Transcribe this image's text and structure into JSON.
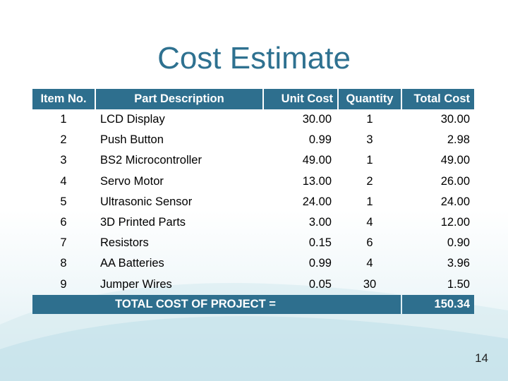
{
  "title": "Cost Estimate",
  "headers": [
    "Item No.",
    "Part Description",
    "Unit Cost",
    "Quantity",
    "Total Cost"
  ],
  "rows": [
    [
      "1",
      "LCD Display",
      "30.00",
      "1",
      "30.00"
    ],
    [
      "2",
      "Push Button",
      "0.99",
      "3",
      "2.98"
    ],
    [
      "3",
      "BS2 Microcontroller",
      "49.00",
      "1",
      "49.00"
    ],
    [
      "4",
      "Servo Motor",
      "13.00",
      "2",
      "26.00"
    ],
    [
      "5",
      "Ultrasonic Sensor",
      "24.00",
      "1",
      "24.00"
    ],
    [
      "6",
      "3D Printed Parts",
      "3.00",
      "4",
      "12.00"
    ],
    [
      "7",
      "Resistors",
      "0.15",
      "6",
      "0.90"
    ],
    [
      "8",
      "AA Batteries",
      "0.99",
      "4",
      "3.96"
    ],
    [
      "9",
      "Jumper Wires",
      "0.05",
      "30",
      "1.50"
    ]
  ],
  "total": {
    "label": "TOTAL COST OF PROJECT =",
    "value": "150.34"
  },
  "slide_number": "14",
  "colors": {
    "accent": "#2e6f8e",
    "title": "#2e7190"
  }
}
